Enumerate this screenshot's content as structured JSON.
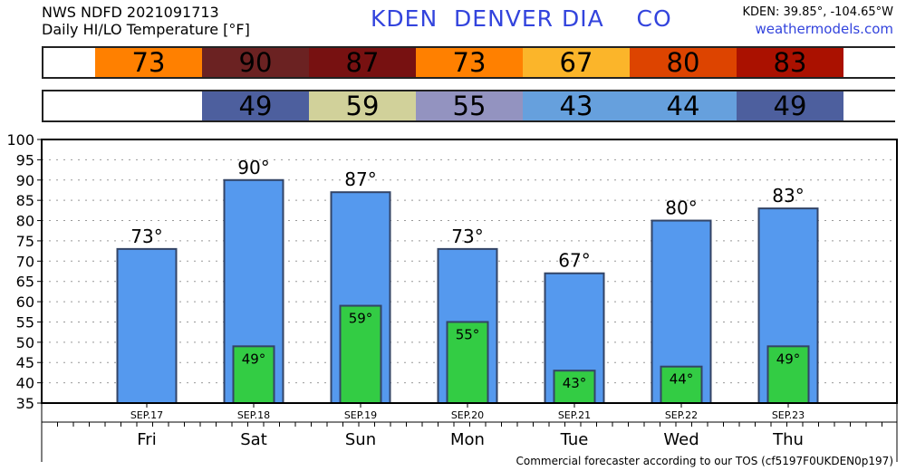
{
  "header": {
    "line1": "NWS NDFD 2021091713",
    "line2": "Daily HI/LO Temperature [°F]",
    "station": "KDEN  DENVER DIA    CO",
    "coords": "KDEN: 39.85°, -104.65°W",
    "site": "weathermodels.com"
  },
  "footer": "Commercial forecaster according to our TOS (cf5197F0UKDEN0p197)",
  "colors": {
    "hi_bar": "#5599ee",
    "lo_bar": "#33cc44",
    "bar_edge": "#334466"
  },
  "hi_strip": [
    {
      "value": "",
      "color": "#ffffff"
    },
    {
      "value": "73",
      "color": "#ff8000"
    },
    {
      "value": "90",
      "color": "#6b2222"
    },
    {
      "value": "87",
      "color": "#771111"
    },
    {
      "value": "73",
      "color": "#ff8000"
    },
    {
      "value": "67",
      "color": "#fbb52a"
    },
    {
      "value": "80",
      "color": "#dd4400"
    },
    {
      "value": "83",
      "color": "#aa1100"
    },
    {
      "value": "",
      "color": "#ffffff"
    }
  ],
  "lo_strip": [
    {
      "value": "",
      "color": "#ffffff"
    },
    {
      "value": "",
      "color": "#ffffff"
    },
    {
      "value": "49",
      "color": "#4d5f9e"
    },
    {
      "value": "59",
      "color": "#d1d19a"
    },
    {
      "value": "55",
      "color": "#9393c0"
    },
    {
      "value": "43",
      "color": "#66a0dd"
    },
    {
      "value": "44",
      "color": "#66a0dd"
    },
    {
      "value": "49",
      "color": "#4d5f9e"
    },
    {
      "value": "",
      "color": "#ffffff"
    }
  ],
  "chart_data": {
    "type": "bar",
    "categories": [
      "Fri",
      "Sat",
      "Sun",
      "Mon",
      "Tue",
      "Wed",
      "Thu"
    ],
    "dates": [
      "SEP.17",
      "SEP.18",
      "SEP.19",
      "SEP.20",
      "SEP.21",
      "SEP.22",
      "SEP.23"
    ],
    "series": [
      {
        "values": [
          73,
          90,
          87,
          73,
          67,
          80,
          83
        ],
        "color": "#5599ee"
      },
      {
        "values": [
          null,
          49,
          59,
          55,
          43,
          44,
          49
        ],
        "color": "#33cc44"
      }
    ],
    "ylim": [
      35,
      100
    ],
    "yticks": [
      35,
      40,
      45,
      50,
      55,
      60,
      65,
      70,
      75,
      80,
      85,
      90,
      95,
      100
    ],
    "grid": true,
    "deg": "°"
  }
}
